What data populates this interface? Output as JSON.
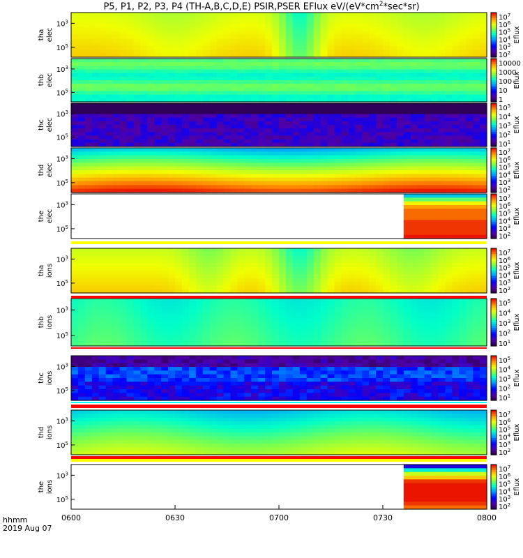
{
  "title": {
    "prefix": "P5, P1, P2, P3, P4 (TH-A,B,C,D,E) PSIR,PSER EFlux eV/(eV*cm",
    "sup": "2",
    "suffix": "*sec*sr)"
  },
  "corner": {
    "line1": "hhmm",
    "line2": "2019 Aug 07"
  },
  "colorbar_label": "Eflux",
  "chart_data": {
    "type": "heatmap",
    "title": "P5, P1, P2, P3, P4 (TH-A,B,C,D,E) PSIR,PSER EFlux eV/(eV*cm2*sec*sr)",
    "xlabel": "hhmm",
    "x_ticks": [
      "0600",
      "0630",
      "0700",
      "0730",
      "0800"
    ],
    "x_range": [
      "06:00",
      "08:00"
    ],
    "date": "2019 Aug 07",
    "panels": [
      {
        "id": "tha-elec",
        "label": [
          "tha",
          "elec"
        ],
        "yticks": [
          {
            "exp": "5",
            "pos": 0.78
          },
          {
            "exp": "3",
            "pos": 0.24
          }
        ],
        "cbar": [
          "10^7",
          "10^6",
          "10^5",
          "10^4",
          "10^3",
          "10^2"
        ],
        "style": "warm"
      },
      {
        "id": "thb-elec",
        "label": [
          "thb",
          "elec"
        ],
        "yticks": [
          {
            "exp": "5",
            "pos": 0.78
          },
          {
            "exp": "3",
            "pos": 0.24
          }
        ],
        "cbar": [
          "10000",
          "1000",
          "100",
          "10",
          "1"
        ],
        "style": "green"
      },
      {
        "id": "thc-elec",
        "label": [
          "thc",
          "elec"
        ],
        "yticks": [
          {
            "exp": "5",
            "pos": 0.78
          },
          {
            "exp": "3",
            "pos": 0.24
          }
        ],
        "cbar": [
          "10^5",
          "10^4",
          "10^3",
          "10^2",
          "10^1"
        ],
        "style": "noise"
      },
      {
        "id": "thd-elec",
        "label": [
          "thd",
          "elec"
        ],
        "yticks": [
          {
            "exp": "5",
            "pos": 0.78
          },
          {
            "exp": "3",
            "pos": 0.24
          }
        ],
        "cbar": [
          "10^7",
          "10^6",
          "10^5",
          "10^4",
          "10^3",
          "10^2"
        ],
        "style": "blue_to_red"
      },
      {
        "id": "the-elec",
        "label": [
          "the",
          "elec"
        ],
        "yticks": [
          {
            "exp": "5",
            "pos": 0.78
          },
          {
            "exp": "3",
            "pos": 0.24
          }
        ],
        "cbar": [
          "10^7",
          "10^6",
          "10^5",
          "10^4",
          "10^3",
          "10^2"
        ],
        "style": "late"
      },
      {
        "id": "tha-ions",
        "label": [
          "tha",
          "ions"
        ],
        "yticks": [
          {
            "exp": "5",
            "pos": 0.78
          },
          {
            "exp": "3",
            "pos": 0.24
          }
        ],
        "cbar": [
          "10^7",
          "10^6",
          "10^5",
          "10^4",
          "10^3",
          "10^2"
        ],
        "style": "warm2"
      },
      {
        "id": "thb-ions",
        "label": [
          "thb",
          "ions"
        ],
        "yticks": [
          {
            "exp": "5",
            "pos": 0.78
          },
          {
            "exp": "3",
            "pos": 0.24
          }
        ],
        "cbar": [
          "10^5",
          "10^4",
          "10^3",
          "10^2",
          "10^1"
        ],
        "style": "cyan"
      },
      {
        "id": "thc-ions",
        "label": [
          "thc",
          "ions"
        ],
        "yticks": [
          {
            "exp": "5",
            "pos": 0.78
          },
          {
            "exp": "3",
            "pos": 0.24
          }
        ],
        "cbar": [
          "10^5",
          "10^4",
          "10^3",
          "10^2",
          "10^1"
        ],
        "style": "noise2"
      },
      {
        "id": "thd-ions",
        "label": [
          "thd",
          "ions"
        ],
        "yticks": [
          {
            "exp": "5",
            "pos": 0.78
          },
          {
            "exp": "3",
            "pos": 0.24
          }
        ],
        "cbar": [
          "10^7",
          "10^6",
          "10^5",
          "10^4",
          "10^3",
          "10^2"
        ],
        "style": "blue_to_green"
      },
      {
        "id": "the-ions",
        "label": [
          "the",
          "ions"
        ],
        "yticks": [
          {
            "exp": "5",
            "pos": 0.78
          },
          {
            "exp": "3",
            "pos": 0.24
          }
        ],
        "cbar": [
          "10^7",
          "10^6",
          "10^5",
          "10^4",
          "10^3",
          "10^2"
        ],
        "style": "late2"
      }
    ]
  }
}
